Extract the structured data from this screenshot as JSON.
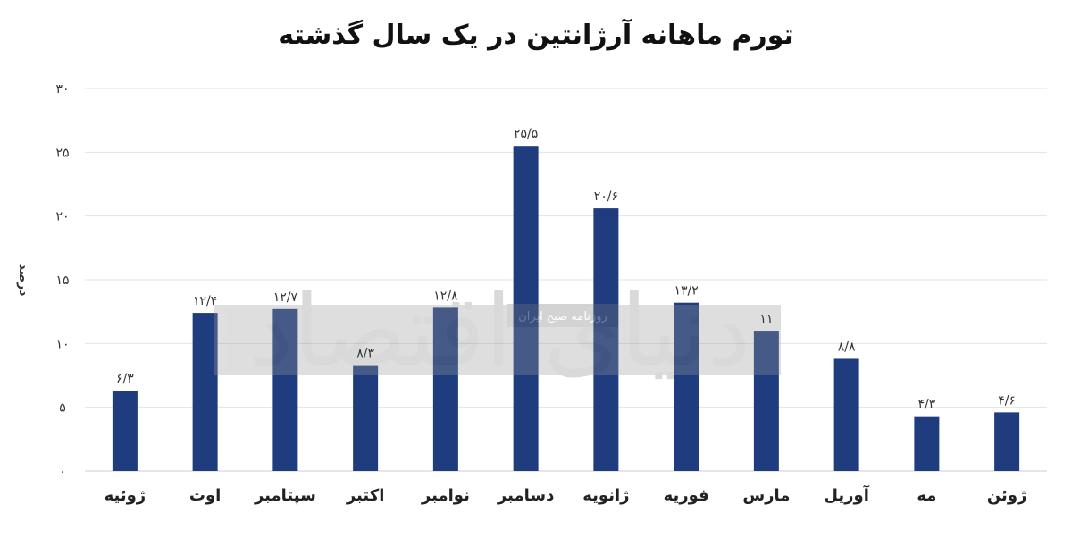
{
  "chart_data": {
    "type": "bar",
    "title": "تورم ماهانه آرژانتین در یک سال گذشته",
    "ylabel": "درصد",
    "xlabel": "",
    "ylim": [
      0,
      30
    ],
    "yticks": [
      0,
      5,
      10,
      15,
      20,
      25,
      30
    ],
    "ytick_labels": [
      "۰",
      "۵",
      "۱۰",
      "۱۵",
      "۲۰",
      "۲۵",
      "۳۰"
    ],
    "categories": [
      "ژوئیه",
      "اوت",
      "سپتامبر",
      "اکتبر",
      "نوامبر",
      "دسامبر",
      "ژانویه",
      "فوریه",
      "مارس",
      "آوریل",
      "مه",
      "ژوئن"
    ],
    "values": [
      6.3,
      12.4,
      12.7,
      8.3,
      12.8,
      25.5,
      20.6,
      13.2,
      11,
      8.8,
      4.3,
      4.6
    ],
    "value_labels": [
      "۶/۳",
      "۱۲/۴",
      "۱۲/۷",
      "۸/۳",
      "۱۲/۸",
      "۲۵/۵",
      "۲۰/۶",
      "۱۳/۲",
      "۱۱",
      "۸/۸",
      "۴/۳",
      "۴/۶"
    ],
    "bar_color": "#1f3c7f",
    "grid": true,
    "legend": "none"
  },
  "watermark": {
    "logo_text": "دنیای اقتصاد",
    "subtext": "روزنامه صبح ایران"
  }
}
